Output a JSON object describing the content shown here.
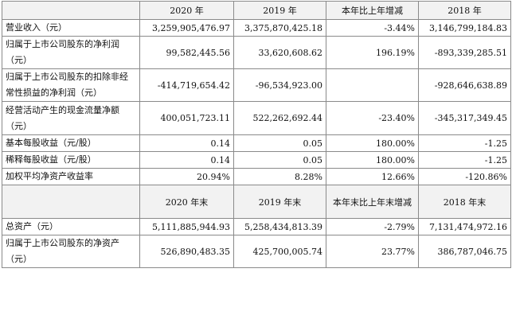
{
  "header1": {
    "blank": "",
    "col1": "2020 年",
    "col2": "2019 年",
    "col3": "本年比上年增减",
    "col4": "2018 年"
  },
  "rows1": [
    {
      "label": "营业收入（元）",
      "v2020": "3,259,905,476.97",
      "v2019": "3,375,870,425.18",
      "chg": "-3.44%",
      "v2018": "3,146,799,184.83"
    },
    {
      "label": "归属于上市公司股东的净利润（元）",
      "v2020": "99,582,445.56",
      "v2019": "33,620,608.62",
      "chg": "196.19%",
      "v2018": "-893,339,285.51"
    },
    {
      "label": "归属于上市公司股东的扣除非经常性损益的净利润（元）",
      "v2020": "-414,719,654.42",
      "v2019": "-96,534,923.00",
      "chg": "",
      "v2018": "-928,646,638.89"
    },
    {
      "label": "经营活动产生的现金流量净额（元）",
      "v2020": "400,051,723.11",
      "v2019": "522,262,692.44",
      "chg": "-23.40%",
      "v2018": "-345,317,349.45"
    },
    {
      "label": "基本每股收益（元/股）",
      "v2020": "0.14",
      "v2019": "0.05",
      "chg": "180.00%",
      "v2018": "-1.25"
    },
    {
      "label": "稀释每股收益（元/股）",
      "v2020": "0.14",
      "v2019": "0.05",
      "chg": "180.00%",
      "v2018": "-1.25"
    },
    {
      "label": "加权平均净资产收益率",
      "v2020": "20.94%",
      "v2019": "8.28%",
      "chg": "12.66%",
      "v2018": "-120.86%"
    }
  ],
  "header2": {
    "blank": "",
    "col1": "2020 年末",
    "col2": "2019 年末",
    "col3": "本年末比上年末增减",
    "col4": "2018 年末"
  },
  "rows2": [
    {
      "label": "总资产（元）",
      "v2020": "5,111,885,944.93",
      "v2019": "5,258,434,813.39",
      "chg": "-2.79%",
      "v2018": "7,131,474,972.16"
    },
    {
      "label": "归属于上市公司股东的净资产（元）",
      "v2020": "526,890,483.35",
      "v2019": "425,700,005.74",
      "chg": "23.77%",
      "v2018": "386,787,046.75"
    }
  ]
}
